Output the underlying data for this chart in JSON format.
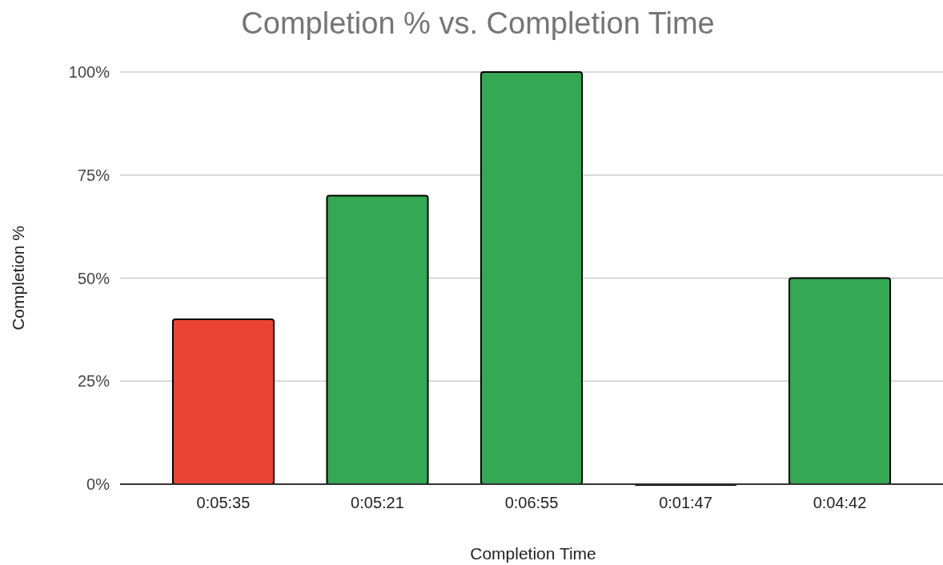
{
  "chart_data": {
    "type": "bar",
    "title": "Completion % vs. Completion Time",
    "xlabel": "Completion Time",
    "ylabel": "Completion %",
    "categories": [
      "0:05:35",
      "0:05:21",
      "0:06:55",
      "0:01:47",
      "0:04:42"
    ],
    "values": [
      40,
      70,
      100,
      0,
      50
    ],
    "colors": [
      "#ea4335",
      "#34a853",
      "#34a853",
      "#34a853",
      "#34a853"
    ],
    "ylim": [
      0,
      100
    ],
    "yticks": [
      {
        "value": 0,
        "label": "0%"
      },
      {
        "value": 25,
        "label": "25%"
      },
      {
        "value": 50,
        "label": "50%"
      },
      {
        "value": 75,
        "label": "75%"
      },
      {
        "value": 100,
        "label": "100%"
      }
    ],
    "grid": "y"
  }
}
